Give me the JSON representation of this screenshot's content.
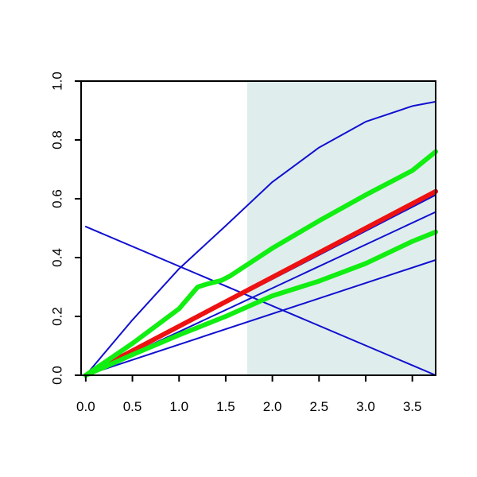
{
  "chart_data": {
    "type": "line",
    "title": "",
    "xlabel": "",
    "ylabel": "",
    "xlim": [
      -0.05,
      3.75
    ],
    "ylim": [
      0.0,
      1.0
    ],
    "x_ticks": [
      0.0,
      0.5,
      1.0,
      1.5,
      2.0,
      2.5,
      3.0,
      3.5
    ],
    "x_tick_labels": [
      "0.0",
      "0.5",
      "1.0",
      "1.5",
      "2.0",
      "2.5",
      "3.0",
      "3.5"
    ],
    "y_ticks": [
      0.0,
      0.2,
      0.4,
      0.6,
      0.8,
      1.0
    ],
    "y_tick_labels": [
      "0.0",
      "0.2",
      "0.4",
      "0.6",
      "0.8",
      "1.0"
    ],
    "grid": false,
    "legend": "none",
    "shaded_region": {
      "x_start": 1.73,
      "x_end": 3.75,
      "color": "#e0eded"
    },
    "series": [
      {
        "color": "#1010d0",
        "width": "thin",
        "x": [
          0,
          0.5,
          1.0,
          1.5,
          2.0,
          2.5,
          3.0,
          3.5,
          3.75
        ],
        "y": [
          0.0,
          0.188,
          0.362,
          0.508,
          0.657,
          0.774,
          0.862,
          0.915,
          0.93
        ]
      },
      {
        "color": "#1010d0",
        "width": "thin",
        "x": [
          0,
          3.75
        ],
        "y": [
          0.505,
          0.0
        ]
      },
      {
        "color": "#1010d0",
        "width": "thin",
        "x": [
          0,
          3.75
        ],
        "y": [
          0.0,
          0.613
        ]
      },
      {
        "color": "#1010d0",
        "width": "thin",
        "x": [
          0,
          3.75
        ],
        "y": [
          0.0,
          0.555
        ]
      },
      {
        "color": "#1010d0",
        "width": "thin",
        "x": [
          0,
          3.75
        ],
        "y": [
          0.0,
          0.392
        ]
      },
      {
        "color": "#ee1111",
        "width": "thick",
        "x": [
          0,
          3.75
        ],
        "y": [
          0.0,
          0.625
        ]
      },
      {
        "color": "#11ee11",
        "width": "thick",
        "x": [
          0,
          0.5,
          1.0,
          1.2,
          1.3,
          1.45,
          1.55,
          2.0,
          2.5,
          3.0,
          3.5,
          3.75
        ],
        "y": [
          0.0,
          0.108,
          0.226,
          0.3,
          0.31,
          0.322,
          0.338,
          0.432,
          0.525,
          0.613,
          0.696,
          0.76
        ]
      },
      {
        "color": "#11ee11",
        "width": "thick",
        "x": [
          0,
          0.5,
          1.0,
          1.5,
          2.0,
          2.5,
          3.0,
          3.5,
          3.75
        ],
        "y": [
          0.0,
          0.07,
          0.137,
          0.2,
          0.27,
          0.32,
          0.38,
          0.455,
          0.487
        ]
      }
    ]
  }
}
